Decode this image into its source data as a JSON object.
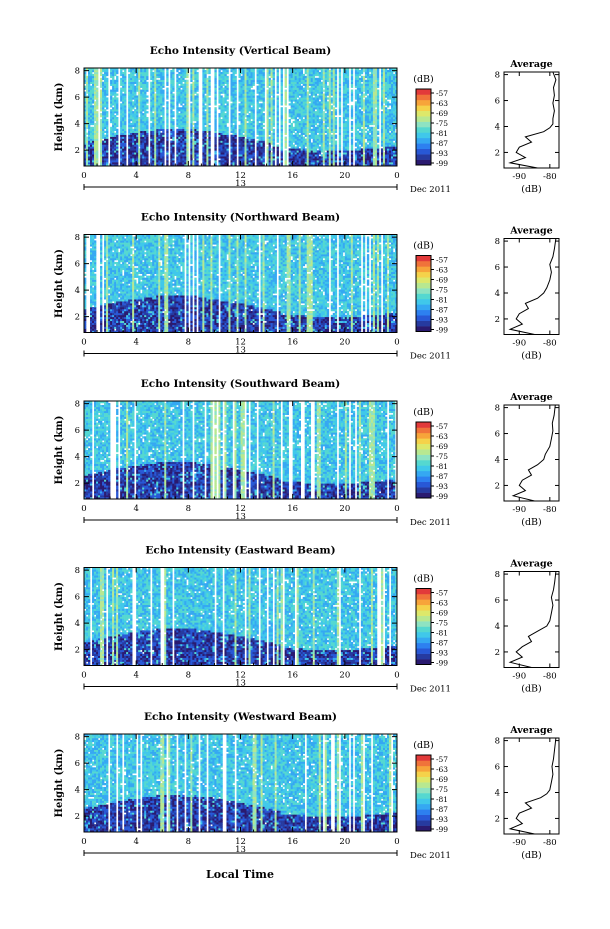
{
  "figure": {
    "x_axis_title": "Local Time",
    "date_label": "Dec 2011",
    "day_label": "13",
    "colorbar_unit": "(dB)",
    "colorbar_ticks": [
      "-57",
      "-63",
      "-69",
      "-75",
      "-81",
      "-87",
      "-93",
      "-99"
    ],
    "avg_title": "Average",
    "avg_xlabel": "(dB)"
  },
  "chart_data": [
    {
      "type": "heatmap",
      "title": "Echo Intensity (Vertical Beam)",
      "ylabel": "Height (km)",
      "xticks": [
        "0",
        "4",
        "8",
        "12",
        "16",
        "20",
        "0"
      ],
      "yticks": [
        "2",
        "4",
        "6",
        "8"
      ],
      "xlim": [
        0,
        24
      ],
      "ylim": [
        0.8,
        8.2
      ],
      "colorbar_range_db": [
        -99,
        -57
      ],
      "avg_xticks": [
        "-90",
        "-80"
      ],
      "avg_xlim": [
        -95,
        -77
      ],
      "avg_yticks": [
        "2",
        "4",
        "6",
        "8"
      ],
      "avg_profile": [
        [
          0.8,
          -84
        ],
        [
          1.2,
          -93
        ],
        [
          1.6,
          -88
        ],
        [
          2.0,
          -91
        ],
        [
          2.4,
          -90
        ],
        [
          2.8,
          -86
        ],
        [
          3.2,
          -88
        ],
        [
          3.6,
          -82
        ],
        [
          3.9,
          -80
        ],
        [
          4.2,
          -79
        ],
        [
          4.6,
          -79
        ],
        [
          5.2,
          -78.5
        ],
        [
          5.8,
          -79
        ],
        [
          6.4,
          -78.5
        ],
        [
          7.0,
          -78.8
        ],
        [
          7.6,
          -78
        ],
        [
          8.2,
          -79
        ]
      ]
    },
    {
      "type": "heatmap",
      "title": "Echo Intensity (Northward Beam)",
      "ylabel": "Height (km)",
      "xticks": [
        "0",
        "4",
        "8",
        "12",
        "16",
        "20",
        "0"
      ],
      "yticks": [
        "2",
        "4",
        "6",
        "8"
      ],
      "xlim": [
        0,
        24
      ],
      "ylim": [
        0.8,
        8.2
      ],
      "colorbar_range_db": [
        -99,
        -57
      ],
      "avg_xticks": [
        "-90",
        "-80"
      ],
      "avg_xlim": [
        -95,
        -77
      ],
      "avg_yticks": [
        "2",
        "4",
        "6",
        "8"
      ],
      "avg_profile": [
        [
          0.8,
          -85
        ],
        [
          1.2,
          -93
        ],
        [
          1.6,
          -89
        ],
        [
          2.0,
          -91
        ],
        [
          2.4,
          -90
        ],
        [
          2.8,
          -87
        ],
        [
          3.2,
          -88
        ],
        [
          3.6,
          -84
        ],
        [
          4.0,
          -82
        ],
        [
          4.4,
          -81
        ],
        [
          5.0,
          -80
        ],
        [
          5.6,
          -79.5
        ],
        [
          6.2,
          -80
        ],
        [
          6.8,
          -79
        ],
        [
          7.4,
          -78.5
        ],
        [
          8.2,
          -78
        ]
      ]
    },
    {
      "type": "heatmap",
      "title": "Echo Intensity (Southward Beam)",
      "ylabel": "Height (km)",
      "xticks": [
        "0",
        "4",
        "8",
        "12",
        "16",
        "20",
        "0"
      ],
      "yticks": [
        "2",
        "4",
        "6",
        "8"
      ],
      "xlim": [
        0,
        24
      ],
      "ylim": [
        0.8,
        8.2
      ],
      "colorbar_range_db": [
        -99,
        -57
      ],
      "avg_xticks": [
        "-90",
        "-80"
      ],
      "avg_xlim": [
        -95,
        -77
      ],
      "avg_yticks": [
        "2",
        "4",
        "6",
        "8"
      ],
      "avg_profile": [
        [
          0.8,
          -85
        ],
        [
          1.2,
          -92
        ],
        [
          1.6,
          -88
        ],
        [
          2.0,
          -90
        ],
        [
          2.4,
          -89
        ],
        [
          2.8,
          -86
        ],
        [
          3.2,
          -87
        ],
        [
          3.6,
          -84
        ],
        [
          4.0,
          -82
        ],
        [
          4.4,
          -81.5
        ],
        [
          5.0,
          -80
        ],
        [
          5.6,
          -79.5
        ],
        [
          6.2,
          -79
        ],
        [
          6.8,
          -79.2
        ],
        [
          7.4,
          -78.6
        ],
        [
          8.2,
          -78.2
        ]
      ]
    },
    {
      "type": "heatmap",
      "title": "Echo Intensity (Eastward Beam)",
      "ylabel": "Height (km)",
      "xticks": [
        "0",
        "4",
        "8",
        "12",
        "16",
        "20",
        "0"
      ],
      "yticks": [
        "2",
        "4",
        "6",
        "8"
      ],
      "xlim": [
        0,
        24
      ],
      "ylim": [
        0.8,
        8.2
      ],
      "colorbar_range_db": [
        -99,
        -57
      ],
      "avg_xticks": [
        "-90",
        "-80"
      ],
      "avg_xlim": [
        -95,
        -77
      ],
      "avg_yticks": [
        "2",
        "4",
        "6",
        "8"
      ],
      "avg_profile": [
        [
          0.8,
          -86
        ],
        [
          1.2,
          -93
        ],
        [
          1.6,
          -89
        ],
        [
          2.0,
          -91
        ],
        [
          2.4,
          -89
        ],
        [
          2.8,
          -86
        ],
        [
          3.2,
          -87
        ],
        [
          3.6,
          -84
        ],
        [
          4.0,
          -81
        ],
        [
          4.4,
          -80
        ],
        [
          5.0,
          -79.5
        ],
        [
          5.6,
          -79
        ],
        [
          6.2,
          -79.5
        ],
        [
          6.8,
          -78.8
        ],
        [
          7.4,
          -78.4
        ],
        [
          8.2,
          -78
        ]
      ]
    },
    {
      "type": "heatmap",
      "title": "Echo Intensity (Westward Beam)",
      "ylabel": "Height (km)",
      "xticks": [
        "0",
        "4",
        "8",
        "12",
        "16",
        "20",
        "0"
      ],
      "yticks": [
        "2",
        "4",
        "6",
        "8"
      ],
      "xlim": [
        0,
        24
      ],
      "ylim": [
        0.8,
        8.2
      ],
      "colorbar_range_db": [
        -99,
        -57
      ],
      "avg_xticks": [
        "-90",
        "-80"
      ],
      "avg_xlim": [
        -95,
        -77
      ],
      "avg_yticks": [
        "2",
        "4",
        "6",
        "8"
      ],
      "avg_profile": [
        [
          0.8,
          -85
        ],
        [
          1.2,
          -93
        ],
        [
          1.6,
          -89
        ],
        [
          2.0,
          -91
        ],
        [
          2.4,
          -90
        ],
        [
          2.8,
          -86
        ],
        [
          3.2,
          -88
        ],
        [
          3.6,
          -83
        ],
        [
          3.9,
          -81
        ],
        [
          4.2,
          -80
        ],
        [
          4.8,
          -79.5
        ],
        [
          5.4,
          -79
        ],
        [
          6.0,
          -79.3
        ],
        [
          6.6,
          -78.8
        ],
        [
          7.2,
          -78.5
        ],
        [
          8.2,
          -78
        ]
      ]
    }
  ]
}
